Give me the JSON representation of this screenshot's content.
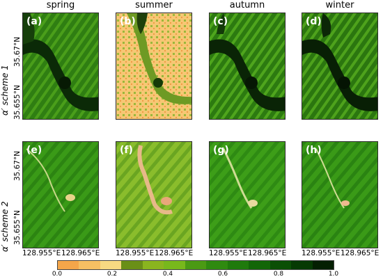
{
  "columns": [
    "spring",
    "summer",
    "autumn",
    "winter"
  ],
  "rows": [
    "α′ scheme 1",
    "α′ scheme 2"
  ],
  "panel_labels": [
    "(a)",
    "(b)",
    "(c)",
    "(d)",
    "(e)",
    "(f)",
    "(g)",
    "(h)"
  ],
  "y_ticks": [
    "35.67°N",
    "35.655°N"
  ],
  "x_ticks": [
    "128.955°E",
    "128.965°E"
  ],
  "colorbar": {
    "ticks": [
      "0.0",
      "0.2",
      "0.4",
      "0.6",
      "0.8",
      "1.0"
    ],
    "colors": [
      "#f4a64a",
      "#f6bf63",
      "#f7d982",
      "#6a8f17",
      "#8ab51f",
      "#78b81c",
      "#4b9a14",
      "#2f8a10",
      "#1f7a0c",
      "#126608",
      "#0b4f05",
      "#063a03",
      "#041f02"
    ]
  }
}
